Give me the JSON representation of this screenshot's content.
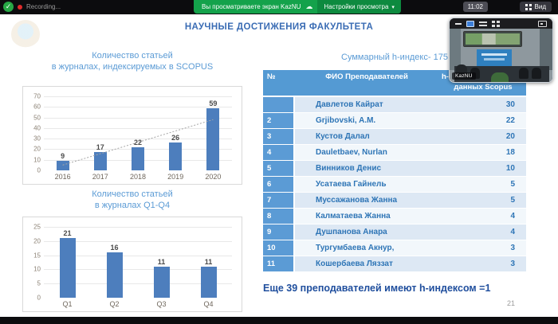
{
  "top_bar": {
    "recording_label": "Recording...",
    "banner_text": "Вы просматриваете экран KazNU",
    "view_settings_label": "Настройки просмотра",
    "chevron": "⌄",
    "time": "11:02",
    "view_button_label": "Вид"
  },
  "video_thumbnail": {
    "participant_label": "KazNU"
  },
  "slide": {
    "title": "НАУЧНЫЕ ДОСТИЖЕНИЯ ФАКУЛЬТЕТА",
    "summary_title": "Суммарный h-индекс- 175",
    "footnote": "Еще 39 преподавателей имеют h-индексом =1",
    "page_number": "21",
    "table": {
      "col_num": "№",
      "col_name": "ФИО Преподавателей",
      "col_h_line1": "h-индекс",
      "col_h_line2": "данных Scopus",
      "rows": [
        {
          "num": "",
          "name": "Давлетов Кайрат",
          "h": "30"
        },
        {
          "num": "2",
          "name": "Grjibovski, A.M.",
          "h": "22"
        },
        {
          "num": "3",
          "name": "Кустов Далал",
          "h": "20"
        },
        {
          "num": "4",
          "name": "Dauletbaev, Nurlan",
          "h": "18"
        },
        {
          "num": "5",
          "name": "Винников Денис",
          "h": "10"
        },
        {
          "num": "6",
          "name": "Усатаева Гайнель",
          "h": "5"
        },
        {
          "num": "7",
          "name": "Муссажанова Жанна",
          "h": "5"
        },
        {
          "num": "8",
          "name": "Калматаева Жанна",
          "h": "4"
        },
        {
          "num": "9",
          "name": "Душпанова Анара",
          "h": "4"
        },
        {
          "num": "10",
          "name": "Тургумбаева Акнур,",
          "h": "3"
        },
        {
          "num": "11",
          "name": "Кошербаева Ляззат",
          "h": "3"
        }
      ]
    }
  },
  "chart_data": [
    {
      "type": "bar",
      "title_lines": [
        "Количество статьей",
        "в журналах, индексируемых в SCOPUS"
      ],
      "categories": [
        "2016",
        "2017",
        "2018",
        "2019",
        "2020"
      ],
      "values": [
        9,
        17,
        22,
        26,
        59
      ],
      "ylim": [
        0,
        70
      ],
      "yticks": [
        0,
        10,
        20,
        30,
        40,
        50,
        60,
        70
      ],
      "grid": true,
      "legend": "none",
      "trendline": {
        "start_value": 5,
        "end_value": 48
      }
    },
    {
      "type": "bar",
      "title_lines": [
        "Количество статьей",
        "в журналах Q1-Q4"
      ],
      "categories": [
        "Q1",
        "Q2",
        "Q3",
        "Q4"
      ],
      "values": [
        21,
        16,
        11,
        11
      ],
      "ylim": [
        0,
        25
      ],
      "yticks": [
        0,
        5,
        10,
        15,
        20,
        25
      ],
      "grid": true,
      "legend": "none"
    }
  ],
  "colors": {
    "bar_blue": "#4d7ebd",
    "table_header_blue": "#549ad3",
    "num_col_blue": "#5b9bd5",
    "row_alt_blue": "#dde8f4",
    "text_blue": "#2e75b6",
    "title_blue": "#3a6cb4",
    "light_blue_title": "#5b9bd5",
    "footnote_blue": "#1f4e9d",
    "banner_green": "#14a24b",
    "button_green": "#0d8a3f"
  }
}
